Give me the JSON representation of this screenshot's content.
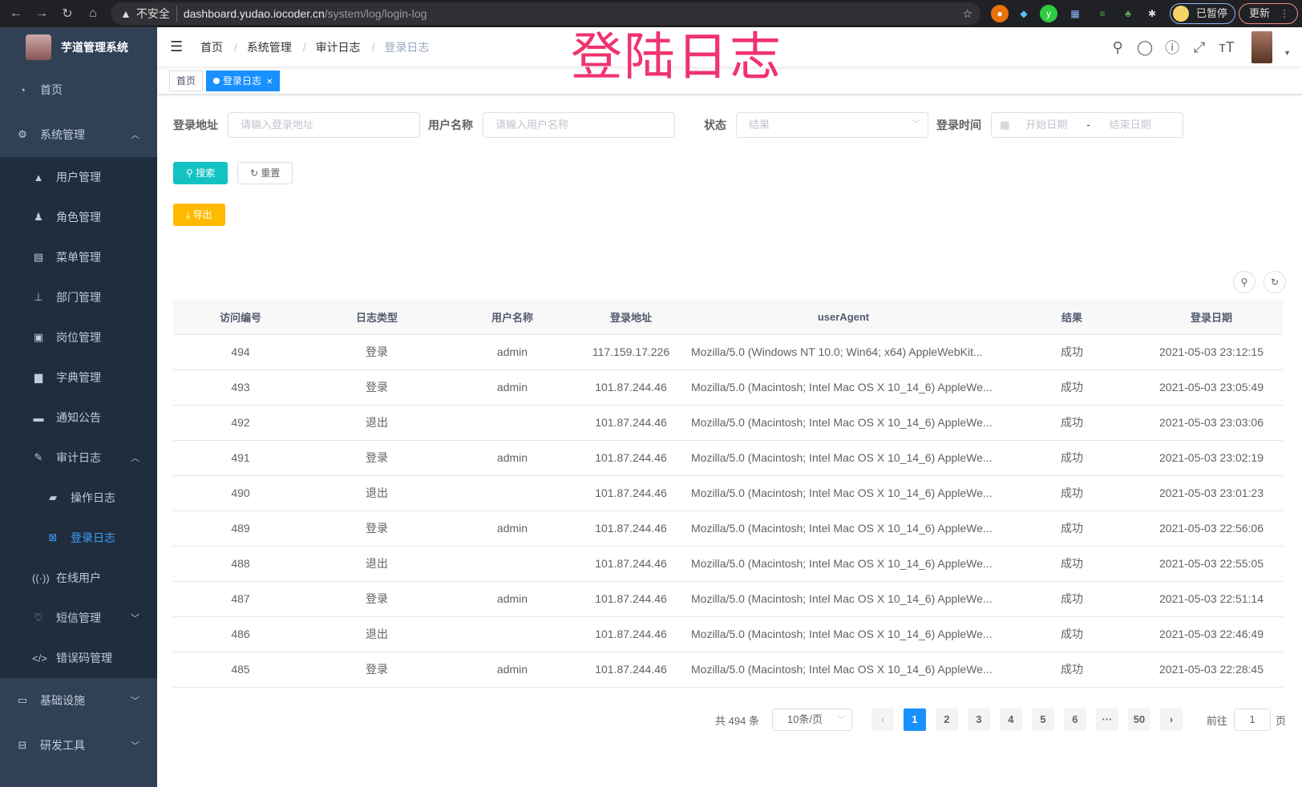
{
  "browser": {
    "insecure_label": "不安全",
    "url_host": "dashboard.yudao.iocoder.cn",
    "url_path": "/system/log/login-log",
    "paused_label": "已暂停",
    "update_label": "更新"
  },
  "overlay_title": "登陆日志",
  "sidebar": {
    "app_title": "芋道管理系统",
    "items": [
      {
        "label": "首页",
        "icon": "dashboard-icon"
      },
      {
        "label": "系统管理",
        "icon": "gear-icon",
        "expanded": true,
        "children": [
          {
            "label": "用户管理",
            "icon": "user-icon"
          },
          {
            "label": "角色管理",
            "icon": "peoples-icon"
          },
          {
            "label": "菜单管理",
            "icon": "tree-table-icon"
          },
          {
            "label": "部门管理",
            "icon": "tree-icon"
          },
          {
            "label": "岗位管理",
            "icon": "post-icon"
          },
          {
            "label": "字典管理",
            "icon": "dict-icon"
          },
          {
            "label": "通知公告",
            "icon": "message-icon"
          },
          {
            "label": "审计日志",
            "icon": "log-icon",
            "expanded": true,
            "children": [
              {
                "label": "操作日志",
                "icon": "form-icon"
              },
              {
                "label": "登录日志",
                "icon": "logininfor-icon",
                "active": true
              }
            ]
          },
          {
            "label": "在线用户",
            "icon": "online-icon"
          },
          {
            "label": "短信管理",
            "icon": "validcode-icon"
          },
          {
            "label": "错误码管理",
            "icon": "code-icon"
          }
        ]
      },
      {
        "label": "基础设施",
        "icon": "monitor-icon"
      },
      {
        "label": "研发工具",
        "icon": "tool-icon"
      }
    ]
  },
  "breadcrumb": [
    "首页",
    "系统管理",
    "审计日志",
    "登录日志"
  ],
  "tags": [
    {
      "label": "首页"
    },
    {
      "label": "登录日志",
      "active": true
    }
  ],
  "filters": {
    "addr_label": "登录地址",
    "addr_placeholder": "请输入登录地址",
    "user_label": "用户名称",
    "user_placeholder": "请输入用户名称",
    "status_label": "状态",
    "status_placeholder": "结果",
    "time_label": "登录时间",
    "start_placeholder": "开始日期",
    "range_sep": "-",
    "end_placeholder": "结束日期"
  },
  "buttons": {
    "search": "搜索",
    "reset": "重置",
    "export": "导出"
  },
  "table": {
    "columns": [
      "访问编号",
      "日志类型",
      "用户名称",
      "登录地址",
      "userAgent",
      "结果",
      "登录日期"
    ],
    "rows": [
      [
        "494",
        "登录",
        "admin",
        "117.159.17.226",
        "Mozilla/5.0 (Windows NT 10.0; Win64; x64) AppleWebKit...",
        "成功",
        "2021-05-03 23:12:15"
      ],
      [
        "493",
        "登录",
        "admin",
        "101.87.244.46",
        "Mozilla/5.0 (Macintosh; Intel Mac OS X 10_14_6) AppleWe...",
        "成功",
        "2021-05-03 23:05:49"
      ],
      [
        "492",
        "退出",
        "",
        "101.87.244.46",
        "Mozilla/5.0 (Macintosh; Intel Mac OS X 10_14_6) AppleWe...",
        "成功",
        "2021-05-03 23:03:06"
      ],
      [
        "491",
        "登录",
        "admin",
        "101.87.244.46",
        "Mozilla/5.0 (Macintosh; Intel Mac OS X 10_14_6) AppleWe...",
        "成功",
        "2021-05-03 23:02:19"
      ],
      [
        "490",
        "退出",
        "",
        "101.87.244.46",
        "Mozilla/5.0 (Macintosh; Intel Mac OS X 10_14_6) AppleWe...",
        "成功",
        "2021-05-03 23:01:23"
      ],
      [
        "489",
        "登录",
        "admin",
        "101.87.244.46",
        "Mozilla/5.0 (Macintosh; Intel Mac OS X 10_14_6) AppleWe...",
        "成功",
        "2021-05-03 22:56:06"
      ],
      [
        "488",
        "退出",
        "",
        "101.87.244.46",
        "Mozilla/5.0 (Macintosh; Intel Mac OS X 10_14_6) AppleWe...",
        "成功",
        "2021-05-03 22:55:05"
      ],
      [
        "487",
        "登录",
        "admin",
        "101.87.244.46",
        "Mozilla/5.0 (Macintosh; Intel Mac OS X 10_14_6) AppleWe...",
        "成功",
        "2021-05-03 22:51:14"
      ],
      [
        "486",
        "退出",
        "",
        "101.87.244.46",
        "Mozilla/5.0 (Macintosh; Intel Mac OS X 10_14_6) AppleWe...",
        "成功",
        "2021-05-03 22:46:49"
      ],
      [
        "485",
        "登录",
        "admin",
        "101.87.244.46",
        "Mozilla/5.0 (Macintosh; Intel Mac OS X 10_14_6) AppleWe...",
        "成功",
        "2021-05-03 22:28:45"
      ]
    ]
  },
  "pagination": {
    "total": "共 494 条",
    "page_size": "10条/页",
    "pages": [
      "1",
      "2",
      "3",
      "4",
      "5",
      "6",
      "···",
      "50"
    ],
    "current": "1",
    "goto_label": "前往",
    "goto_value": "1",
    "page_suffix": "页"
  },
  "colors": {
    "sidebar_bg": "#304156",
    "submenu_bg": "#1f2d3d",
    "active": "#409eff",
    "primary": "#13c2c2",
    "warning": "#ffba00",
    "page_active": "#1890ff",
    "overlay": "#f0336e"
  }
}
